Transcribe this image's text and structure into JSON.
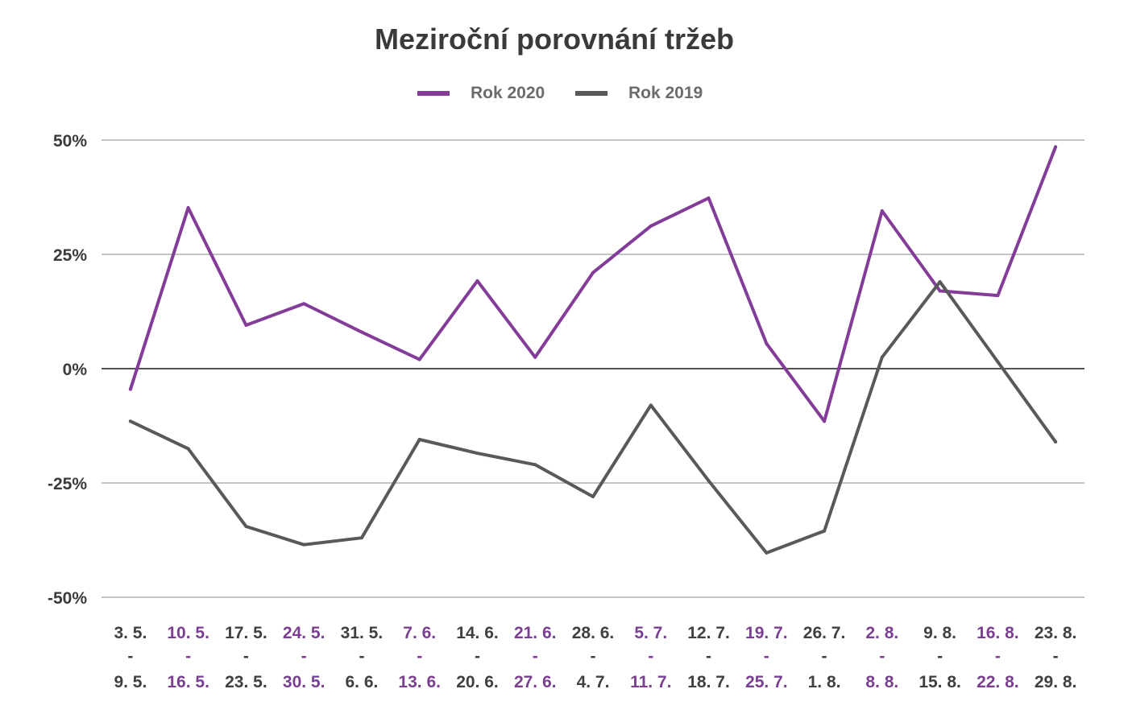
{
  "chart_data": {
    "type": "line",
    "title": "Meziroční porovnání tržeb",
    "legend_position": "top",
    "grid": true,
    "ylim": [
      -0.5,
      0.5
    ],
    "yticks": [
      {
        "value": 0.5,
        "label": "50%"
      },
      {
        "value": 0.25,
        "label": "25%"
      },
      {
        "value": 0,
        "label": "0%"
      },
      {
        "value": -0.25,
        "label": "-25%"
      },
      {
        "value": -0.5,
        "label": "-50%"
      }
    ],
    "categories": [
      {
        "start": "3. 5.",
        "sep": "-",
        "end": "9. 5."
      },
      {
        "start": "10. 5.",
        "sep": "-",
        "end": "16. 5."
      },
      {
        "start": "17. 5.",
        "sep": "-",
        "end": "23. 5."
      },
      {
        "start": "24. 5.",
        "sep": "-",
        "end": "30. 5."
      },
      {
        "start": "31. 5.",
        "sep": "-",
        "end": "6. 6."
      },
      {
        "start": "7. 6.",
        "sep": "-",
        "end": "13. 6."
      },
      {
        "start": "14. 6.",
        "sep": "-",
        "end": "20. 6."
      },
      {
        "start": "21. 6.",
        "sep": "-",
        "end": "27. 6."
      },
      {
        "start": "28. 6.",
        "sep": "-",
        "end": "4. 7."
      },
      {
        "start": "5. 7.",
        "sep": "-",
        "end": "11. 7."
      },
      {
        "start": "12. 7.",
        "sep": "-",
        "end": "18. 7."
      },
      {
        "start": "19. 7.",
        "sep": "-",
        "end": "25. 7."
      },
      {
        "start": "26. 7.",
        "sep": "-",
        "end": "1. 8."
      },
      {
        "start": "2. 8.",
        "sep": "-",
        "end": "8. 8."
      },
      {
        "start": "9. 8.",
        "sep": "-",
        "end": "15. 8."
      },
      {
        "start": "16. 8.",
        "sep": "-",
        "end": "22. 8."
      },
      {
        "start": "23. 8.",
        "sep": "-",
        "end": "29. 8."
      }
    ],
    "category_colors": [
      "#404040",
      "#7b3f91"
    ],
    "series": [
      {
        "name": "Rok 2020",
        "color": "#843c99",
        "values": [
          -0.045,
          0.352,
          0.095,
          0.142,
          0.08,
          0.02,
          0.192,
          0.025,
          0.21,
          0.312,
          0.373,
          0.055,
          -0.115,
          0.345,
          0.17,
          0.16,
          0.485
        ]
      },
      {
        "name": "Rok 2019",
        "color": "#595959",
        "values": [
          -0.115,
          -0.175,
          -0.345,
          -0.385,
          -0.37,
          -0.155,
          -0.185,
          -0.21,
          -0.28,
          -0.08,
          -0.245,
          -0.403,
          -0.355,
          0.025,
          0.19,
          0.015,
          -0.16
        ]
      }
    ]
  }
}
